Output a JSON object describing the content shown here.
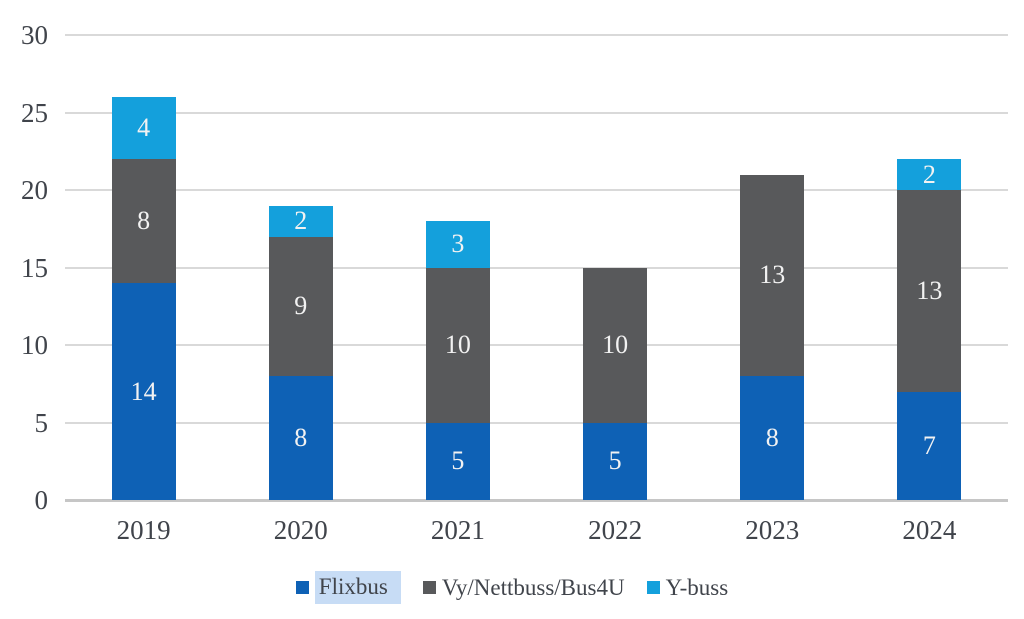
{
  "chart_data": {
    "type": "bar",
    "stacked": true,
    "title": "",
    "xlabel": "",
    "ylabel": "",
    "categories": [
      "2019",
      "2020",
      "2021",
      "2022",
      "2023",
      "2024"
    ],
    "series": [
      {
        "name": "Flixbus",
        "color": "#0E61B5",
        "values": [
          14,
          8,
          5,
          5,
          8,
          7
        ]
      },
      {
        "name": "Vy/Nettbuss/Bus4U",
        "color": "#58595B",
        "values": [
          8,
          9,
          10,
          10,
          13,
          13
        ]
      },
      {
        "name": "Y-buss",
        "color": "#14A0DC",
        "values": [
          4,
          2,
          3,
          0,
          0,
          2
        ]
      }
    ],
    "totals": [
      26,
      19,
      18,
      15,
      21,
      22
    ],
    "ylim": [
      0,
      30
    ],
    "yticks": [
      0,
      5,
      10,
      15,
      20,
      25,
      30
    ],
    "grid": true,
    "data_labels": "shown on every non-zero segment",
    "legend_position": "bottom"
  },
  "legend": {
    "items": [
      {
        "label": "Flixbus",
        "color": "#0E61B5",
        "highlighted": true
      },
      {
        "label": "Vy/Nettbuss/Bus4U",
        "color": "#58595B",
        "highlighted": false
      },
      {
        "label": "Y-buss",
        "color": "#14A0DC",
        "highlighted": false
      }
    ],
    "highlight_color": "#C7DCF5"
  },
  "colors": {
    "background": "#FFFFFF",
    "gridline": "#D9D9D9",
    "axis_line": "#C6C6C6",
    "axis_text": "#40444B",
    "bar_value_text": "#F2F2F2"
  }
}
